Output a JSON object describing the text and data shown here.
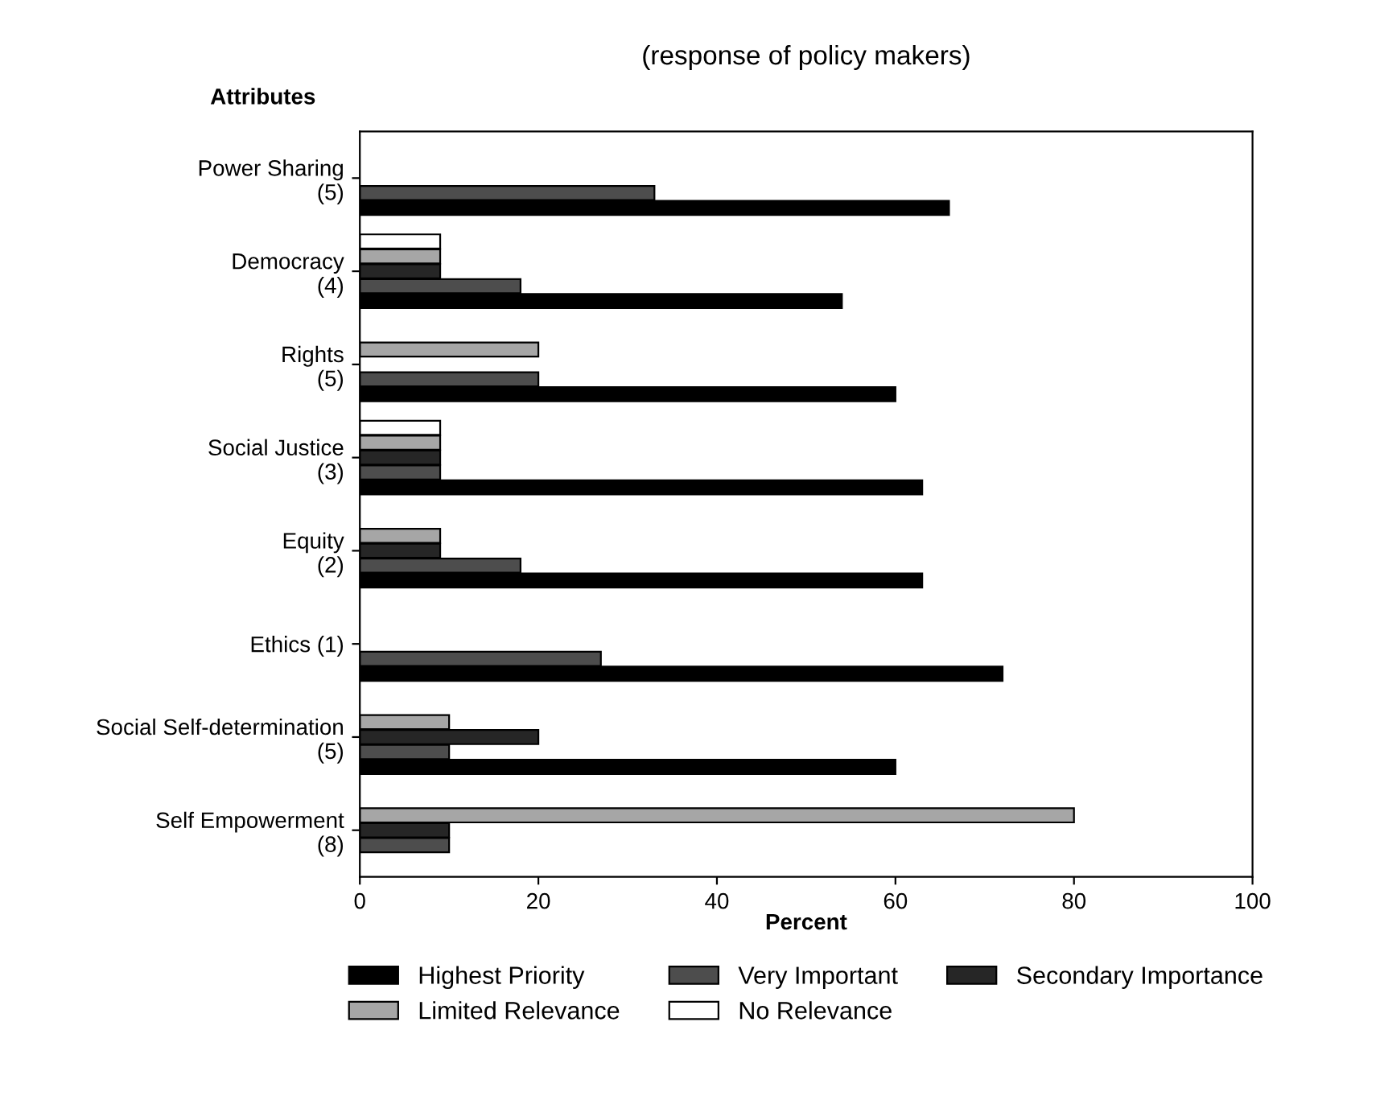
{
  "chart_data": {
    "type": "bar",
    "orientation": "horizontal",
    "title": "(response of policy makers)",
    "ylabel": "Attributes",
    "xlabel": "Percent",
    "categories": [
      "Power Sharing\n(5)",
      "Democracy\n(4)",
      "Rights\n(5)",
      "Social Justice\n(3)",
      "Equity\n(2)",
      "Ethics (1)",
      "Social Self-determination\n(5)",
      "Self Empowerment\n(8)"
    ],
    "series": [
      {
        "name": "Highest Priority",
        "color": "#000000",
        "values": [
          66,
          54,
          60,
          63,
          63,
          72,
          60,
          null
        ]
      },
      {
        "name": "Very Important",
        "color": "#4d4d4d",
        "values": [
          33,
          18,
          20,
          9,
          18,
          27,
          10,
          10
        ]
      },
      {
        "name": "Secondary Importance",
        "color": "#262626",
        "values": [
          null,
          9,
          null,
          9,
          9,
          null,
          20,
          10
        ]
      },
      {
        "name": "Limited Relevance",
        "color": "#a6a6a6",
        "values": [
          null,
          9,
          20,
          9,
          9,
          null,
          10,
          80
        ]
      },
      {
        "name": "No Relevance",
        "color": "#ffffff",
        "values": [
          null,
          9,
          null,
          9,
          null,
          null,
          null,
          null
        ]
      }
    ],
    "xlim": [
      0,
      100
    ],
    "xticks": [
      0,
      20,
      40,
      60,
      80,
      100
    ],
    "grid": false,
    "legend": "bottom"
  }
}
